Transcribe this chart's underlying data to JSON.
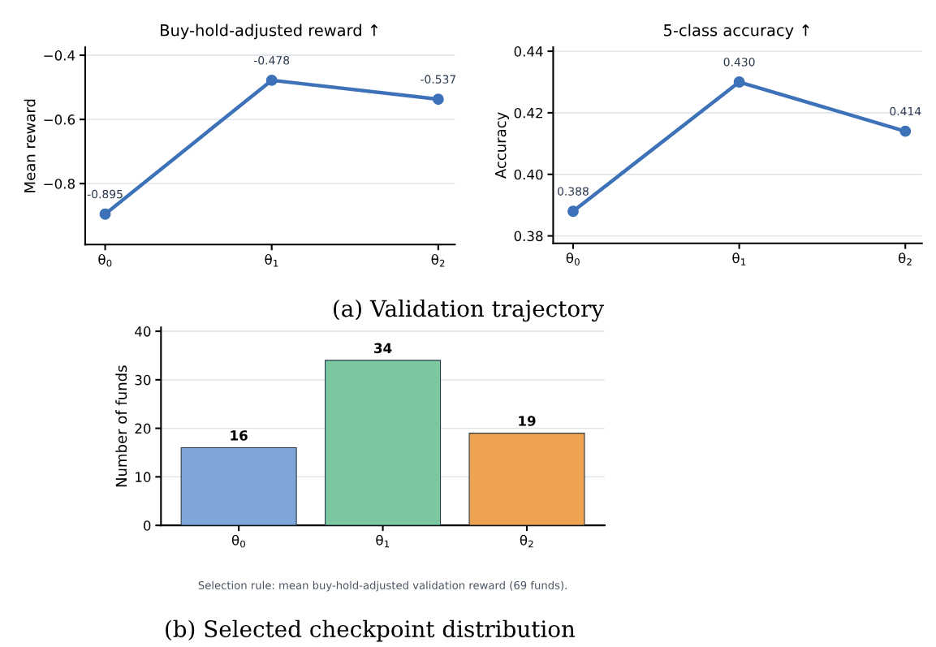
{
  "chart_data": [
    {
      "type": "line",
      "title": "Buy-hold-adjusted reward ↑",
      "ylabel": "Mean reward",
      "categories": [
        "θ$_{0}$",
        "θ$_{1}$",
        "θ$_{2}$"
      ],
      "series": [
        {
          "color": "#3d72b8",
          "values": [
            -0.895,
            -0.478,
            -0.537
          ],
          "value_labels": [
            "-0.895",
            "-0.478",
            "-0.537"
          ]
        }
      ],
      "ylim": [
        -0.99,
        -0.375
      ],
      "yticks": [
        {
          "value": -0.8,
          "label": "−0.8"
        },
        {
          "value": -0.6,
          "label": "−0.6"
        },
        {
          "value": -0.4,
          "label": "−0.4"
        }
      ],
      "grid": "y",
      "marker": "circle",
      "line_style": "solid",
      "annotations": [
        "(a) Validation trajectory"
      ]
    },
    {
      "type": "line",
      "title": "5-class accuracy ↑",
      "ylabel": "Accuracy",
      "categories": [
        "θ$_{0}$",
        "θ$_{1}$",
        "θ$_{2}$"
      ],
      "series": [
        {
          "color": "#3d72b8",
          "values": [
            0.388,
            0.43,
            0.414
          ],
          "value_labels": [
            "0.388",
            "0.430",
            "0.414"
          ]
        }
      ],
      "ylim": [
        0.3776,
        0.4413
      ],
      "yticks": [
        {
          "value": 0.38,
          "label": "0.38"
        },
        {
          "value": 0.4,
          "label": "0.40"
        },
        {
          "value": 0.42,
          "label": "0.42"
        },
        {
          "value": 0.44,
          "label": "0.44"
        }
      ],
      "grid": "y",
      "marker": "circle",
      "line_style": "solid"
    },
    {
      "type": "bar",
      "ylabel": "Number of funds",
      "categories": [
        "θ$_{0}$",
        "θ$_{1}$",
        "θ$_{2}$"
      ],
      "values": [
        16,
        34,
        19
      ],
      "colors": [
        "#7fa6d8",
        "#7ac7a0",
        "#eea350"
      ],
      "ylim": [
        0,
        40.8
      ],
      "yticks": [
        0,
        10,
        20,
        30,
        40
      ],
      "grid": "y",
      "data_labels": true,
      "annotations": [
        "Selection rule: mean buy-hold-adjusted validation reward (69 funds).",
        "(b) Selected checkpoint distribution"
      ]
    }
  ]
}
